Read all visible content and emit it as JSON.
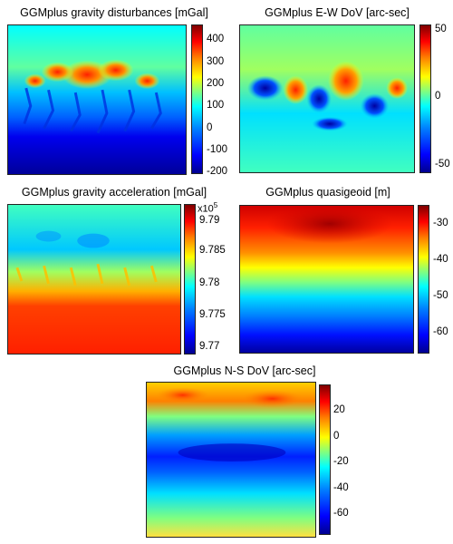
{
  "figure": {
    "colormap": "jet",
    "colormap_stops": [
      "#00008f",
      "#0000ff",
      "#0080ff",
      "#00ffff",
      "#80ff80",
      "#ffff00",
      "#ff8000",
      "#ff0000",
      "#800000"
    ]
  },
  "chart_data": [
    {
      "type": "heatmap",
      "title": "GGMplus gravity disturbances [mGal]",
      "colorbar": {
        "range": [
          -200,
          450
        ],
        "ticks": [
          "400",
          "300",
          "200",
          "100",
          "0",
          "-100",
          "-200"
        ],
        "tick_values": [
          400,
          300,
          200,
          100,
          0,
          -100,
          -200
        ]
      },
      "pattern": "high values in mountain ridges near upper-middle, dendritic valley pattern, low values at bottom"
    },
    {
      "type": "heatmap",
      "title": "GGMplus E-W DoV [arc-sec]",
      "colorbar": {
        "range": [
          -55,
          55
        ],
        "ticks": [
          "50",
          "0",
          "-50"
        ],
        "tick_values": [
          50,
          0,
          -50
        ]
      },
      "pattern": "alternating strong positive and negative anomalies in central band, near zero elsewhere"
    },
    {
      "type": "heatmap",
      "title": "GGMplus gravity acceleration [mGal]",
      "colorbar": {
        "range": [
          9.77,
          9.793
        ],
        "exponent": "x10",
        "exponent_power": "5",
        "ticks": [
          "9.79",
          "9.785",
          "9.78",
          "9.775",
          "9.77"
        ],
        "tick_values": [
          9.79,
          9.785,
          9.78,
          9.775,
          9.77
        ]
      },
      "pattern": "low values at top with blue valleys, sharp transition to high values at bottom"
    },
    {
      "type": "heatmap",
      "title": "GGMplus quasigeoid [m]",
      "colorbar": {
        "range": [
          -65,
          -22
        ],
        "ticks": [
          "-30",
          "-40",
          "-50",
          "-60"
        ],
        "tick_values": [
          -30,
          -40,
          -50,
          -60
        ]
      },
      "pattern": "smooth gradient from high values at top to low values at bottom"
    },
    {
      "type": "heatmap",
      "title": "GGMplus N-S DoV [arc-sec]",
      "colorbar": {
        "range": [
          -78,
          38
        ],
        "ticks": [
          "20",
          "0",
          "-20",
          "-40",
          "-60"
        ],
        "tick_values": [
          20,
          0,
          -20,
          -40,
          -60
        ]
      },
      "pattern": "positive band at top, strong negative band in middle, near zero at bottom"
    }
  ]
}
